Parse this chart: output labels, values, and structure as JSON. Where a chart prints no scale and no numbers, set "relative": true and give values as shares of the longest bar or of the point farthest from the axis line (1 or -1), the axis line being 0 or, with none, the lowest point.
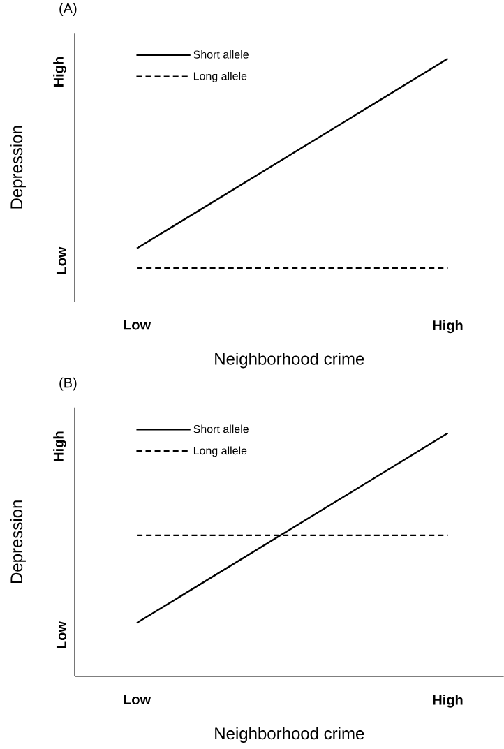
{
  "chart_data": [
    {
      "type": "line",
      "title": "(A)",
      "xlabel": "Neighborhood crime",
      "ylabel": "Depression",
      "categories": [
        "Low",
        "High"
      ],
      "relative": true,
      "series": [
        {
          "name": "Short allele",
          "color": "#000000",
          "line_style": "solid",
          "values": [
            0.22,
            1
          ]
        },
        {
          "name": "Long allele",
          "color": "#000000",
          "line_style": "dashed",
          "values": [
            0.14,
            0.14
          ]
        }
      ],
      "annotations": [
        "Low",
        "High"
      ],
      "legend": "top left",
      "marker": "none"
    },
    {
      "type": "line",
      "title": "(B)",
      "xlabel": "Neighborhood crime",
      "ylabel": "Depression",
      "categories": [
        "Low",
        "High"
      ],
      "relative": true,
      "series": [
        {
          "name": "Short allele",
          "color": "#000000",
          "line_style": "solid",
          "values": [
            0.22,
            1
          ]
        },
        {
          "name": "Long allele",
          "color": "#000000",
          "line_style": "dashed",
          "values": [
            0.58,
            0.58
          ]
        }
      ],
      "annotations": [
        "Low",
        "High"
      ],
      "legend": "top left",
      "marker": "none"
    }
  ]
}
